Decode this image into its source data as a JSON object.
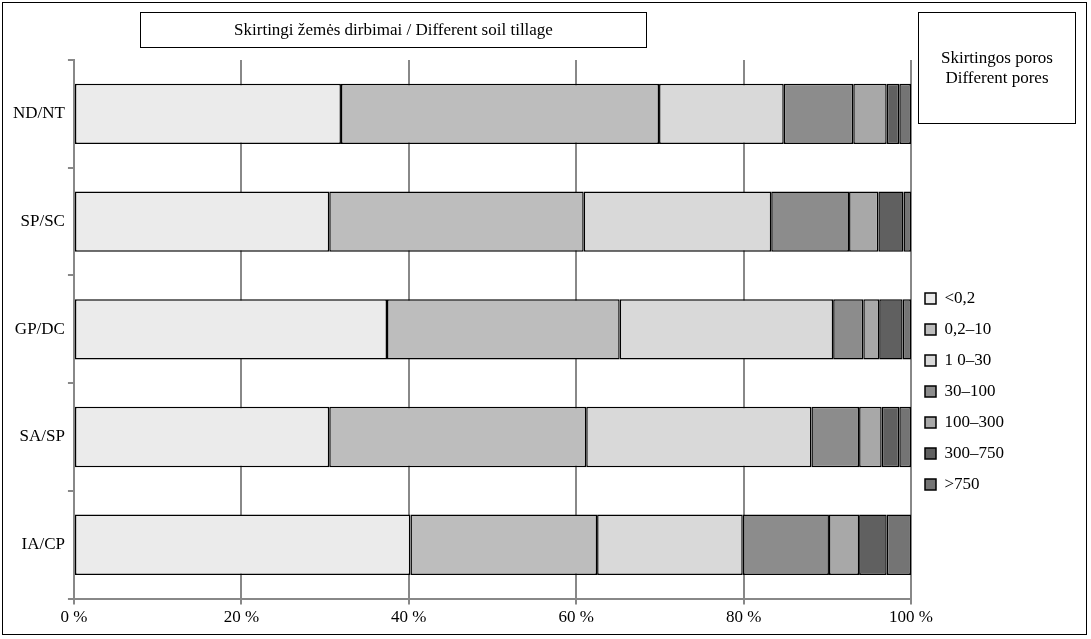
{
  "chart_data": {
    "type": "bar",
    "orientation": "horizontal",
    "stacked": true,
    "title": "Skirtingi žemės dirbimai / Different soil tillage",
    "legend_title": "Skirtingos poros Different pores",
    "legend": "right",
    "grid": "x",
    "categories": [
      "ND/NT",
      "SP/SC",
      "GP/DC",
      "SA/SP",
      "IA/CP"
    ],
    "xlim": [
      0,
      100
    ],
    "xticks": [
      {
        "value": 0,
        "label": "0 %"
      },
      {
        "value": 20,
        "label": "20 %"
      },
      {
        "value": 40,
        "label": "40 %"
      },
      {
        "value": 60,
        "label": "60 %"
      },
      {
        "value": 80,
        "label": "80 %"
      },
      {
        "value": 100,
        "label": "100 %"
      }
    ],
    "series": [
      {
        "name": "<0,2",
        "color": "#ebebeb",
        "values": [
          31.9,
          30.5,
          37.4,
          30.5,
          40.2
        ]
      },
      {
        "name": "0,2–10",
        "color": "#bdbdbd",
        "values": [
          38.0,
          30.4,
          27.8,
          30.7,
          22.3
        ]
      },
      {
        "name": "1 0–30",
        "color": "#d9d9d9",
        "values": [
          14.9,
          22.4,
          25.5,
          26.9,
          17.4
        ]
      },
      {
        "name": "30–100",
        "color": "#8c8c8c",
        "values": [
          8.3,
          9.3,
          3.6,
          5.7,
          10.3
        ]
      },
      {
        "name": "100–300",
        "color": "#a8a8a8",
        "values": [
          4.0,
          3.5,
          1.9,
          2.7,
          3.6
        ]
      },
      {
        "name": "300–750",
        "color": "#606060",
        "values": [
          1.5,
          3.0,
          2.8,
          2.1,
          3.3
        ]
      },
      {
        "name": ">750",
        "color": "#747474",
        "values": [
          1.4,
          0.9,
          1.0,
          1.4,
          2.9
        ]
      }
    ]
  }
}
